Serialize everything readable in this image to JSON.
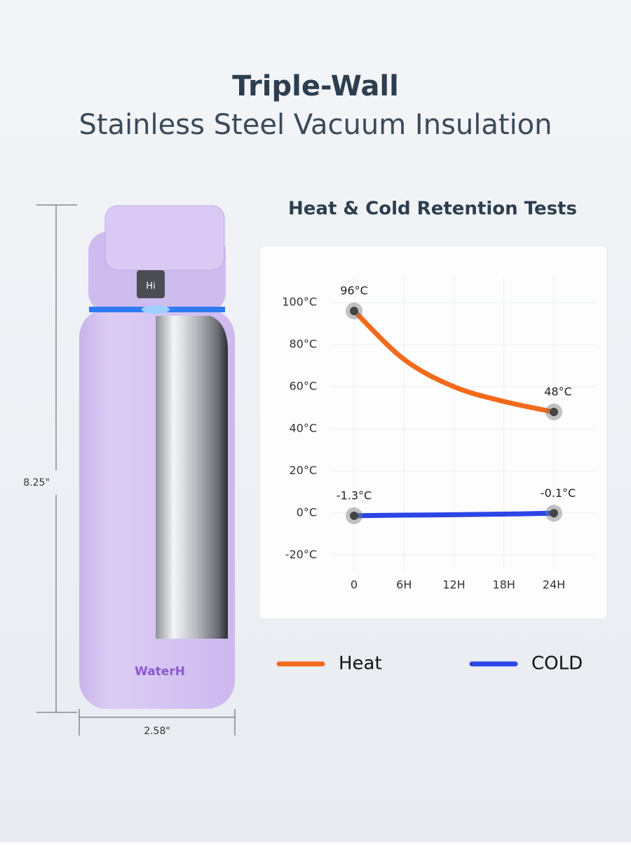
{
  "header": {
    "title": "Triple-Wall",
    "subtitle": "Stainless Steel Vacuum Insulation"
  },
  "product": {
    "height_label": "8.25\"",
    "width_label": "2.58\"",
    "display_text": "Hi",
    "brand": "WaterH"
  },
  "chart_data": {
    "type": "line",
    "title": "Heat & Cold Retention Tests",
    "categories": [
      "0",
      "6H",
      "12H",
      "18H",
      "24H"
    ],
    "series": [
      {
        "name": "Heat",
        "color": "#f26a1b",
        "values": [
          96,
          73,
          60,
          53,
          48
        ],
        "value_labels": [
          "96°C",
          null,
          null,
          null,
          "48°C"
        ]
      },
      {
        "name": "COLD",
        "color": "#2c45e6",
        "values": [
          -1.3,
          -1,
          -0.8,
          -0.5,
          -0.1
        ],
        "value_labels": [
          "-1.3°C",
          null,
          null,
          null,
          "-0.1°C"
        ]
      }
    ],
    "ylim": [
      -27,
      112
    ],
    "yticks": [
      {
        "value": -20,
        "label": "-20°C"
      },
      {
        "value": 0,
        "label": "0°C"
      },
      {
        "value": 20,
        "label": "20°C"
      },
      {
        "value": 40,
        "label": "40°C"
      },
      {
        "value": 60,
        "label": "60°C"
      },
      {
        "value": 80,
        "label": "80°C"
      },
      {
        "value": 100,
        "label": "100°C"
      }
    ],
    "grid": true
  }
}
